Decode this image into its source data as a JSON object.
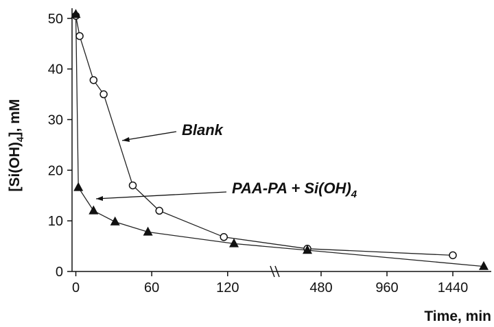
{
  "chart_data": {
    "type": "scatter",
    "ylabel_main": "[Si(OH)",
    "ylabel_sub": "4",
    "ylabel_tail": "], mM",
    "xlabel": "Time, min",
    "ylim": [
      0,
      52
    ],
    "yticks": [
      0,
      10,
      20,
      30,
      40,
      50
    ],
    "x_segments": [
      {
        "range": [
          -3,
          157
        ],
        "ticks": [
          0,
          60,
          120
        ]
      },
      {
        "range": [
          155,
          1665
        ],
        "ticks": [
          480,
          960,
          1440
        ]
      }
    ],
    "axis_break": true,
    "series": [
      {
        "marker": "open-circle",
        "points": [
          [
            0,
            50.5
          ],
          [
            3,
            46.5
          ],
          [
            14,
            37.8
          ],
          [
            22,
            35.0
          ],
          [
            45,
            17.0
          ],
          [
            66,
            12.0
          ],
          [
            117,
            6.8
          ],
          [
            380,
            4.5
          ],
          [
            1440,
            3.2
          ]
        ]
      },
      {
        "marker": "filled-triangle",
        "points": [
          [
            0,
            50.8
          ],
          [
            2,
            16.6
          ],
          [
            14,
            12.0
          ],
          [
            31,
            9.8
          ],
          [
            57,
            7.8
          ],
          [
            125,
            5.5
          ],
          [
            380,
            4.2
          ],
          [
            1665,
            1.0
          ]
        ]
      }
    ],
    "annotations": {
      "blank": {
        "text": "Blank"
      },
      "paa": {
        "text_main": "PAA-PA + Si(OH)",
        "text_sub": "4"
      }
    }
  }
}
